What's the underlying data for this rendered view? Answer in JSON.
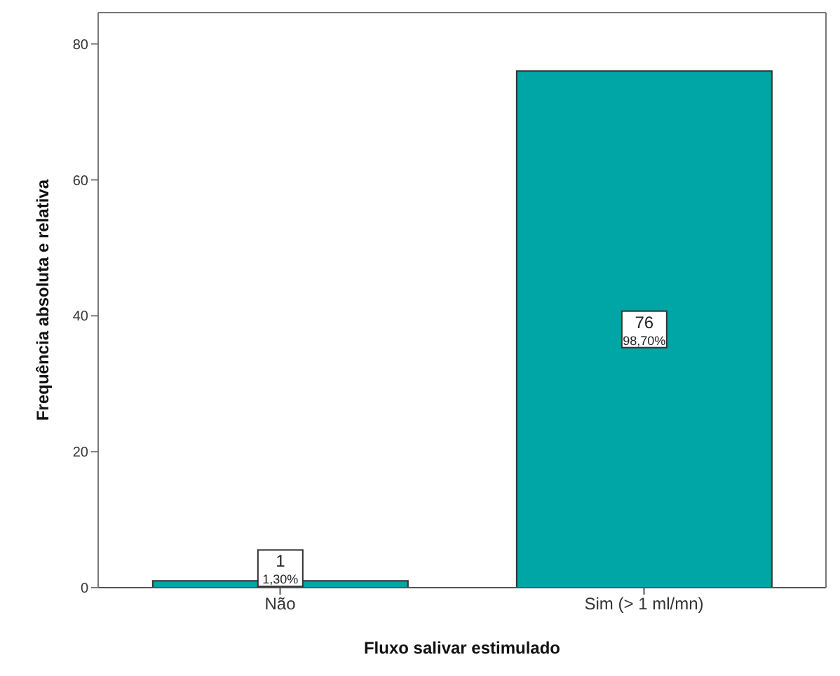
{
  "chart_data": {
    "type": "bar",
    "xlabel": "Fluxo salivar estimulado",
    "ylabel": "Frequência absoluta e relativa",
    "categories": [
      "Não",
      "Sim (> 1 ml/mn)"
    ],
    "values": [
      1,
      76
    ],
    "color": "#00a5a5",
    "value_labels": [
      "1\n1,30%",
      "76\n98,70%"
    ],
    "ylim": [
      0,
      84.6
    ],
    "yticks": [
      0,
      20,
      40,
      60,
      80
    ]
  }
}
